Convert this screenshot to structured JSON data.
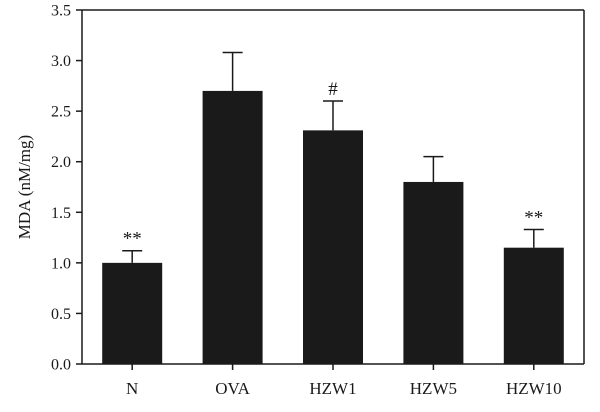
{
  "chart_data": {
    "type": "bar",
    "title": "",
    "xlabel": "",
    "ylabel": "MDA (nM/mg)",
    "ylim": [
      0,
      3.5
    ],
    "yticks": [
      "0.0",
      "0.5",
      "1.0",
      "1.5",
      "2.0",
      "2.5",
      "3.0",
      "3.5"
    ],
    "categories": [
      "N",
      "OVA",
      "HZW1",
      "HZW5",
      "HZW10"
    ],
    "values": [
      1.0,
      2.7,
      2.31,
      1.8,
      1.15
    ],
    "errors": [
      0.12,
      0.38,
      0.29,
      0.25,
      0.18
    ],
    "annotations": [
      "**",
      "",
      "#",
      "",
      "**"
    ],
    "bar_color": "#1a1a1a",
    "grid": false,
    "legend": "none"
  }
}
